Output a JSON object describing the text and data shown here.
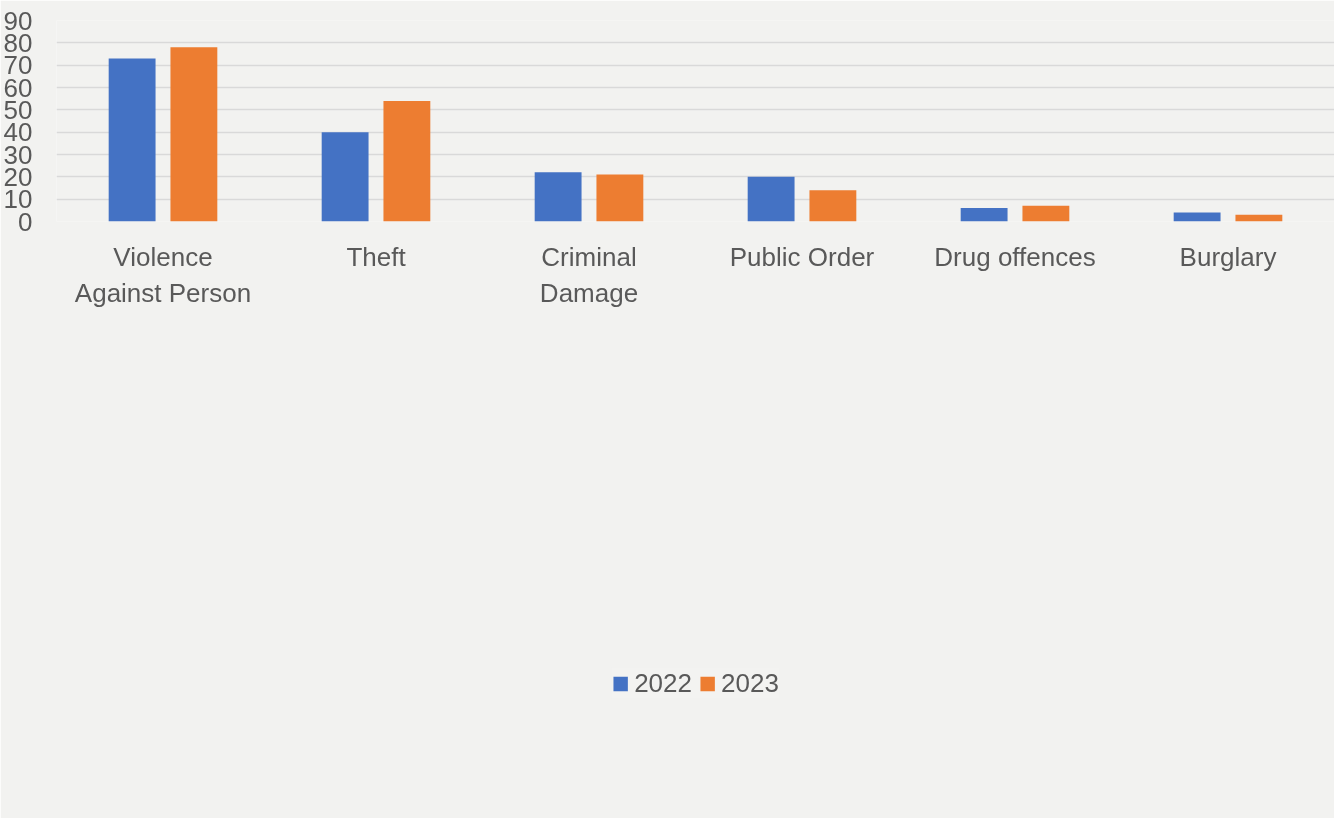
{
  "chart_data": {
    "type": "bar",
    "categories": [
      "Violence Against Person",
      "Theft",
      "Criminal Damage",
      "Public Order",
      "Drug offences",
      "Burglary"
    ],
    "series": [
      {
        "name": "2022",
        "color": "#4472c4",
        "values": [
          73,
          40,
          22,
          20,
          6,
          4
        ]
      },
      {
        "name": "2023",
        "color": "#ed7d31",
        "values": [
          78,
          54,
          21,
          14,
          7,
          3
        ]
      }
    ],
    "ylim": [
      0,
      90
    ],
    "yticks": [
      0,
      10,
      20,
      30,
      40,
      50,
      60,
      70,
      80,
      90
    ],
    "grid": "y",
    "legend": "bottom"
  }
}
